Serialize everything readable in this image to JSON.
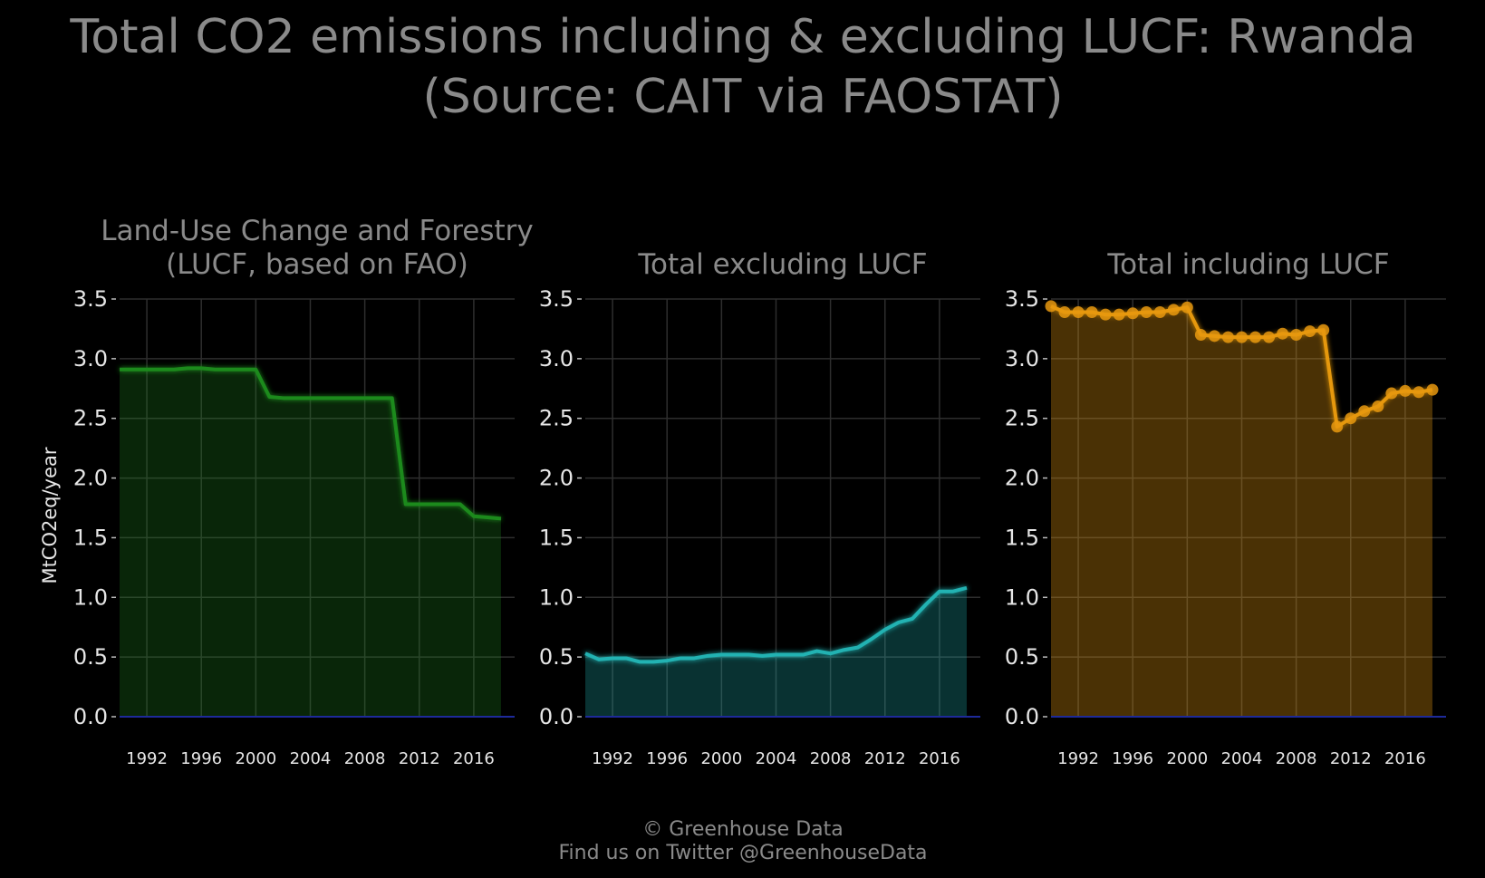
{
  "title": {
    "line1": "Total CO2 emissions including & excluding LUCF: Rwanda",
    "line2": "(Source: CAIT via FAOSTAT)"
  },
  "ylabel": "MtCO2eq/year",
  "footer": {
    "line1": "© Greenhouse Data",
    "line2": "Find us on Twitter @GreenhouseData"
  },
  "colors": {
    "lucf": "#1f8a1f",
    "excl": "#20b2b2",
    "incl": "#e6980f",
    "baseline": "#1e2a9a",
    "grid": "#2e2e2e"
  },
  "chart_data": [
    {
      "type": "area",
      "title_lines": [
        "Land-Use Change and Forestry",
        "(LUCF, based on FAO)"
      ],
      "xlabel": "",
      "ylabel": "MtCO2eq/year",
      "xlim": [
        1990,
        2019
      ],
      "ylim": [
        0,
        3.5
      ],
      "xticks": [
        1992,
        1996,
        2000,
        2004,
        2008,
        2012,
        2016
      ],
      "yticks": [
        0.0,
        0.5,
        1.0,
        1.5,
        2.0,
        2.5,
        3.0,
        3.5
      ],
      "grid": true,
      "x": [
        1990,
        1991,
        1992,
        1993,
        1994,
        1995,
        1996,
        1997,
        1998,
        1999,
        2000,
        2001,
        2002,
        2003,
        2004,
        2005,
        2006,
        2007,
        2008,
        2009,
        2010,
        2011,
        2012,
        2013,
        2014,
        2015,
        2016,
        2017,
        2018
      ],
      "y": [
        2.91,
        2.91,
        2.91,
        2.91,
        2.91,
        2.92,
        2.92,
        2.91,
        2.91,
        2.91,
        2.91,
        2.68,
        2.67,
        2.67,
        2.67,
        2.67,
        2.67,
        2.67,
        2.67,
        2.67,
        2.67,
        1.78,
        1.78,
        1.78,
        1.78,
        1.78,
        1.68,
        1.67,
        1.66
      ],
      "markers": false
    },
    {
      "type": "area",
      "title_lines": [
        "Total excluding LUCF"
      ],
      "xlabel": "",
      "ylabel": "",
      "xlim": [
        1990,
        2019
      ],
      "ylim": [
        0,
        3.5
      ],
      "xticks": [
        1992,
        1996,
        2000,
        2004,
        2008,
        2012,
        2016
      ],
      "yticks": [
        0.0,
        0.5,
        1.0,
        1.5,
        2.0,
        2.5,
        3.0,
        3.5
      ],
      "grid": true,
      "x": [
        1990,
        1991,
        1992,
        1993,
        1994,
        1995,
        1996,
        1997,
        1998,
        1999,
        2000,
        2001,
        2002,
        2003,
        2004,
        2005,
        2006,
        2007,
        2008,
        2009,
        2010,
        2011,
        2012,
        2013,
        2014,
        2015,
        2016,
        2017,
        2018
      ],
      "y": [
        0.53,
        0.48,
        0.49,
        0.49,
        0.46,
        0.46,
        0.47,
        0.49,
        0.49,
        0.51,
        0.52,
        0.52,
        0.52,
        0.51,
        0.52,
        0.52,
        0.52,
        0.55,
        0.53,
        0.56,
        0.58,
        0.65,
        0.73,
        0.79,
        0.82,
        0.94,
        1.05,
        1.05,
        1.08
      ],
      "markers": false
    },
    {
      "type": "area",
      "title_lines": [
        "Total including LUCF"
      ],
      "xlabel": "",
      "ylabel": "",
      "xlim": [
        1990,
        2019
      ],
      "ylim": [
        0,
        3.5
      ],
      "xticks": [
        1992,
        1996,
        2000,
        2004,
        2008,
        2012,
        2016
      ],
      "yticks": [
        0.0,
        0.5,
        1.0,
        1.5,
        2.0,
        2.5,
        3.0,
        3.5
      ],
      "grid": true,
      "x": [
        1990,
        1991,
        1992,
        1993,
        1994,
        1995,
        1996,
        1997,
        1998,
        1999,
        2000,
        2001,
        2002,
        2003,
        2004,
        2005,
        2006,
        2007,
        2008,
        2009,
        2010,
        2011,
        2012,
        2013,
        2014,
        2015,
        2016,
        2017,
        2018
      ],
      "y": [
        3.44,
        3.39,
        3.39,
        3.39,
        3.37,
        3.37,
        3.38,
        3.39,
        3.39,
        3.41,
        3.43,
        3.2,
        3.19,
        3.18,
        3.18,
        3.18,
        3.18,
        3.21,
        3.2,
        3.23,
        3.24,
        2.43,
        2.5,
        2.56,
        2.6,
        2.71,
        2.73,
        2.72,
        2.74
      ],
      "markers": true
    }
  ]
}
